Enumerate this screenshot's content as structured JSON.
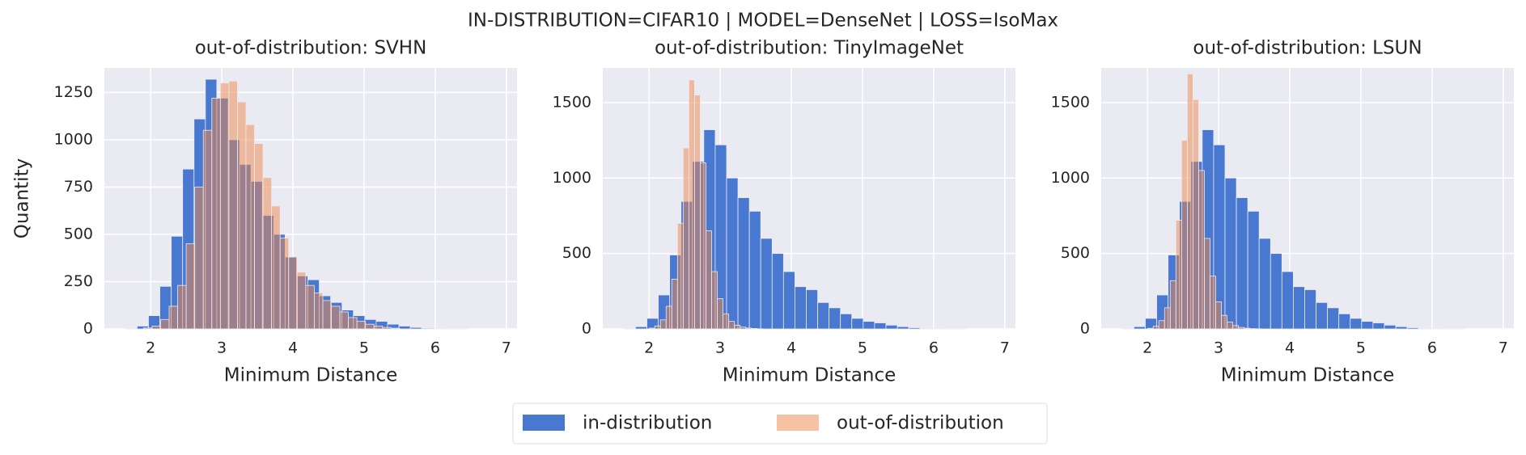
{
  "suptitle": "IN-DISTRIBUTION=CIFAR10 | MODEL=DenseNet | LOSS=IsoMax",
  "chart_data": [
    {
      "type": "histogram",
      "title": "out-of-distribution: SVHN",
      "xlabel": "Minimum Distance",
      "ylabel": "Quantity",
      "xlim": [
        1.35,
        7.15
      ],
      "ylim": [
        0,
        1380
      ],
      "xticks": [
        2,
        3,
        4,
        5,
        6,
        7
      ],
      "yticks": [
        0,
        250,
        500,
        750,
        1000,
        1250
      ],
      "grid": true,
      "series": [
        {
          "name": "in-distribution",
          "color": "#4878d0",
          "opacity": 1,
          "bins": [
            1.65,
            1.81,
            1.97,
            2.13,
            2.29,
            2.45,
            2.61,
            2.77,
            2.93,
            3.09,
            3.25,
            3.41,
            3.57,
            3.73,
            3.89,
            4.05,
            4.21,
            4.37,
            4.53,
            4.69,
            4.85,
            5.01,
            5.17,
            5.33,
            5.49,
            5.65,
            5.81,
            5.97,
            6.13,
            6.29,
            6.45
          ],
          "values": [
            3,
            15,
            70,
            225,
            490,
            845,
            1110,
            1320,
            1220,
            1000,
            870,
            780,
            600,
            500,
            380,
            280,
            260,
            175,
            140,
            100,
            70,
            50,
            40,
            25,
            15,
            8,
            4,
            2,
            1,
            1
          ]
        },
        {
          "name": "out-of-distribution",
          "color": "#ee854a",
          "opacity": 0.5,
          "bins": [
            1.9,
            2.02,
            2.14,
            2.26,
            2.38,
            2.5,
            2.62,
            2.74,
            2.86,
            2.98,
            3.1,
            3.22,
            3.34,
            3.46,
            3.58,
            3.7,
            3.82,
            3.94,
            4.06,
            4.18,
            4.3,
            4.42,
            4.54,
            4.66,
            4.78,
            4.9,
            5.02,
            5.14,
            5.26,
            5.38,
            5.5
          ],
          "values": [
            5,
            15,
            50,
            120,
            230,
            450,
            750,
            1050,
            1220,
            1300,
            1310,
            1200,
            1080,
            980,
            800,
            650,
            480,
            380,
            300,
            230,
            190,
            150,
            120,
            90,
            60,
            40,
            25,
            15,
            8,
            4
          ]
        }
      ]
    },
    {
      "type": "histogram",
      "title": "out-of-distribution: TinyImageNet",
      "xlabel": "Minimum Distance",
      "xlim": [
        1.35,
        7.15
      ],
      "ylim": [
        0,
        1730
      ],
      "xticks": [
        2,
        3,
        4,
        5,
        6,
        7
      ],
      "yticks": [
        0,
        500,
        1000,
        1500
      ],
      "grid": true,
      "series": [
        {
          "name": "in-distribution",
          "color": "#4878d0",
          "opacity": 1,
          "bins": [
            1.65,
            1.81,
            1.97,
            2.13,
            2.29,
            2.45,
            2.61,
            2.77,
            2.93,
            3.09,
            3.25,
            3.41,
            3.57,
            3.73,
            3.89,
            4.05,
            4.21,
            4.37,
            4.53,
            4.69,
            4.85,
            5.01,
            5.17,
            5.33,
            5.49,
            5.65,
            5.81,
            5.97,
            6.13,
            6.29,
            6.45
          ],
          "values": [
            3,
            15,
            70,
            225,
            490,
            845,
            1110,
            1320,
            1220,
            1000,
            870,
            780,
            600,
            500,
            380,
            280,
            260,
            175,
            140,
            100,
            70,
            50,
            40,
            25,
            15,
            8,
            4,
            2,
            1,
            1
          ]
        },
        {
          "name": "out-of-distribution",
          "color": "#ee854a",
          "opacity": 0.5,
          "bins": [
            2.0,
            2.08,
            2.16,
            2.24,
            2.32,
            2.4,
            2.48,
            2.56,
            2.64,
            2.72,
            2.8,
            2.88,
            2.96,
            3.04,
            3.12,
            3.2,
            3.28,
            3.36,
            3.44,
            3.52,
            3.6
          ],
          "values": [
            5,
            20,
            60,
            150,
            330,
            700,
            1200,
            1650,
            1550,
            1100,
            650,
            380,
            200,
            100,
            50,
            25,
            12,
            6,
            3,
            1
          ]
        }
      ]
    },
    {
      "type": "histogram",
      "title": "out-of-distribution: LSUN",
      "xlabel": "Minimum Distance",
      "xlim": [
        1.35,
        7.15
      ],
      "ylim": [
        0,
        1730
      ],
      "xticks": [
        2,
        3,
        4,
        5,
        6,
        7
      ],
      "yticks": [
        0,
        500,
        1000,
        1500
      ],
      "grid": true,
      "series": [
        {
          "name": "in-distribution",
          "color": "#4878d0",
          "opacity": 1,
          "bins": [
            1.65,
            1.81,
            1.97,
            2.13,
            2.29,
            2.45,
            2.61,
            2.77,
            2.93,
            3.09,
            3.25,
            3.41,
            3.57,
            3.73,
            3.89,
            4.05,
            4.21,
            4.37,
            4.53,
            4.69,
            4.85,
            5.01,
            5.17,
            5.33,
            5.49,
            5.65,
            5.81,
            5.97,
            6.13,
            6.29,
            6.45
          ],
          "values": [
            3,
            15,
            70,
            225,
            490,
            845,
            1110,
            1320,
            1220,
            1000,
            870,
            780,
            600,
            500,
            380,
            280,
            260,
            175,
            140,
            100,
            70,
            50,
            40,
            25,
            15,
            8,
            4,
            2,
            1,
            1
          ]
        },
        {
          "name": "out-of-distribution",
          "color": "#ee854a",
          "opacity": 0.5,
          "bins": [
            2.0,
            2.08,
            2.16,
            2.24,
            2.32,
            2.4,
            2.48,
            2.56,
            2.64,
            2.72,
            2.8,
            2.88,
            2.96,
            3.04,
            3.12,
            3.2,
            3.28,
            3.36,
            3.44,
            3.52,
            3.6
          ],
          "values": [
            4,
            18,
            55,
            140,
            320,
            720,
            1250,
            1690,
            1520,
            1050,
            600,
            350,
            180,
            90,
            45,
            22,
            10,
            5,
            2,
            1
          ]
        }
      ]
    }
  ]
}
